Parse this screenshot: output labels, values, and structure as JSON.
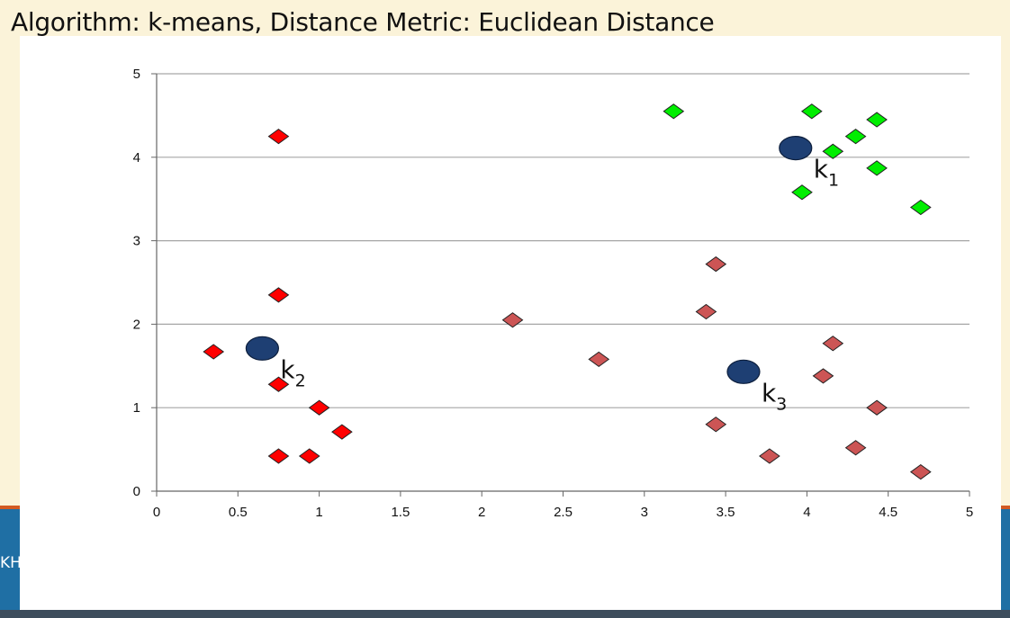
{
  "slide": {
    "title": "Algorithm: k-means, Distance Metric: Euclidean Distance",
    "footer_fragment": "KH",
    "colors": {
      "background": "#fbf3d9",
      "band": "#1f6fa4",
      "band_accent": "#d25a22"
    }
  },
  "chart_data": {
    "type": "scatter",
    "title": "",
    "xlabel": "",
    "ylabel": "",
    "xlim": [
      0,
      5
    ],
    "ylim": [
      0,
      5
    ],
    "x_ticks": [
      "0",
      "0.5",
      "1",
      "1.5",
      "2",
      "2.5",
      "3",
      "3.5",
      "4",
      "4.5",
      "5"
    ],
    "y_ticks": [
      "0",
      "1",
      "2",
      "3",
      "4",
      "5"
    ],
    "horizontal_grid": true,
    "vertical_grid": false,
    "legend": "none",
    "series": [
      {
        "marker": "diamond",
        "color": "#00ee00",
        "points": [
          [
            3.18,
            4.55
          ],
          [
            4.03,
            4.55
          ],
          [
            4.43,
            4.45
          ],
          [
            4.3,
            4.25
          ],
          [
            4.16,
            4.07
          ],
          [
            4.43,
            3.87
          ],
          [
            3.97,
            3.58
          ],
          [
            4.7,
            3.4
          ]
        ]
      },
      {
        "marker": "diamond",
        "color": "#ff0000",
        "points": [
          [
            0.75,
            4.25
          ],
          [
            0.75,
            2.35
          ],
          [
            0.35,
            1.67
          ],
          [
            0.75,
            1.28
          ],
          [
            1.0,
            1.0
          ],
          [
            1.14,
            0.71
          ],
          [
            0.75,
            0.42
          ],
          [
            0.94,
            0.42
          ]
        ]
      },
      {
        "marker": "diamond",
        "color": "#cc5555",
        "points": [
          [
            3.44,
            2.72
          ],
          [
            3.38,
            2.15
          ],
          [
            2.19,
            2.05
          ],
          [
            2.72,
            1.58
          ],
          [
            4.16,
            1.77
          ],
          [
            4.1,
            1.38
          ],
          [
            4.43,
            1.0
          ],
          [
            3.44,
            0.8
          ],
          [
            3.77,
            0.42
          ],
          [
            4.3,
            0.52
          ],
          [
            4.7,
            0.23
          ]
        ]
      }
    ],
    "centroids": [
      {
        "label": "k",
        "subscript": "1",
        "x": 3.93,
        "y": 4.11,
        "color": "#1e3f73"
      },
      {
        "label": "k",
        "subscript": "2",
        "x": 0.65,
        "y": 1.71,
        "color": "#1e3f73"
      },
      {
        "label": "k",
        "subscript": "3",
        "x": 3.61,
        "y": 1.43,
        "color": "#1e3f73"
      }
    ],
    "grid_color": "#a6a6a6",
    "axis_color": "#666666"
  }
}
